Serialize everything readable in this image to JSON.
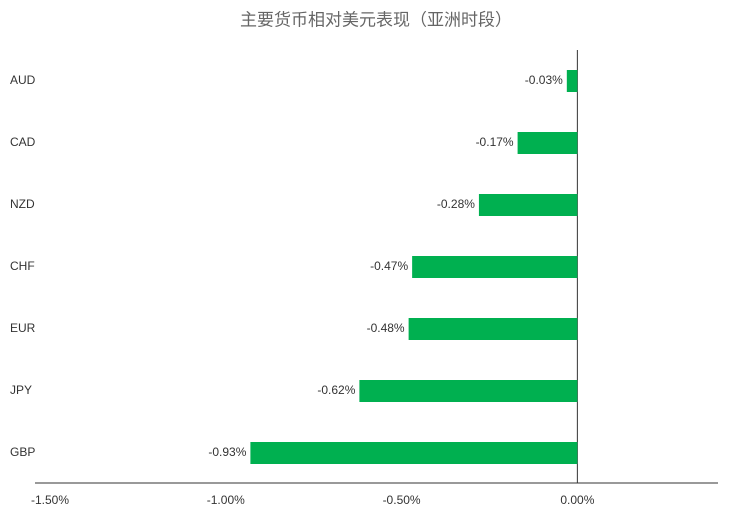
{
  "chart_data": {
    "type": "barh",
    "title": "主要货币相对美元表现（亚洲时段）",
    "categories": [
      "AUD",
      "CAD",
      "NZD",
      "CHF",
      "EUR",
      "JPY",
      "GBP"
    ],
    "values": [
      -0.03,
      -0.17,
      -0.28,
      -0.47,
      -0.48,
      -0.62,
      -0.93
    ],
    "value_labels": [
      "-0.03%",
      "-0.17%",
      "-0.28%",
      "-0.47%",
      "-0.48%",
      "-0.62%",
      "-0.93%"
    ],
    "color": "#00b050",
    "xlim": [
      -1.5,
      0.4
    ],
    "xticks": [
      {
        "value": -1.5,
        "label": "-1.50%"
      },
      {
        "value": -1.0,
        "label": "-1.00%"
      },
      {
        "value": -0.5,
        "label": "-0.50%"
      },
      {
        "value": 0,
        "label": "0.00%"
      }
    ],
    "grid": false
  }
}
